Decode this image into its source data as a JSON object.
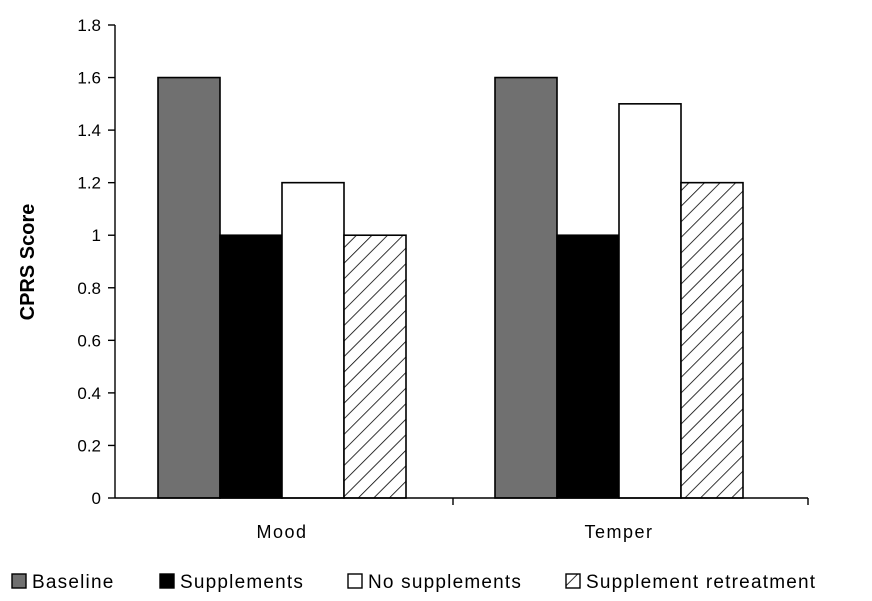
{
  "chart_data": {
    "type": "bar",
    "title": "",
    "xlabel": "",
    "ylabel": "CPRS Score",
    "ylim": [
      0,
      1.8
    ],
    "yticks": [
      0,
      0.2,
      0.4,
      0.6,
      0.8,
      1,
      1.2,
      1.4,
      1.6,
      1.8
    ],
    "ytick_labels": [
      "0",
      "0.2",
      "0.4",
      "0.6",
      "0.8",
      "1",
      "1.2",
      "1.4",
      "1.6",
      "1.8"
    ],
    "categories": [
      "Mood",
      "Temper"
    ],
    "grid": false,
    "legend_position": "bottom",
    "series": [
      {
        "name": "Baseline",
        "values": [
          1.6,
          1.6
        ],
        "fill": "#707070",
        "pattern": "solid"
      },
      {
        "name": "Supplements",
        "values": [
          1.0,
          1.0
        ],
        "fill": "#000000",
        "pattern": "solid"
      },
      {
        "name": "No supplements",
        "values": [
          1.2,
          1.5
        ],
        "fill": "#ffffff",
        "pattern": "solid"
      },
      {
        "name": "Supplement retreatment",
        "values": [
          1.0,
          1.2
        ],
        "fill": "#ffffff",
        "pattern": "hatch"
      }
    ]
  }
}
